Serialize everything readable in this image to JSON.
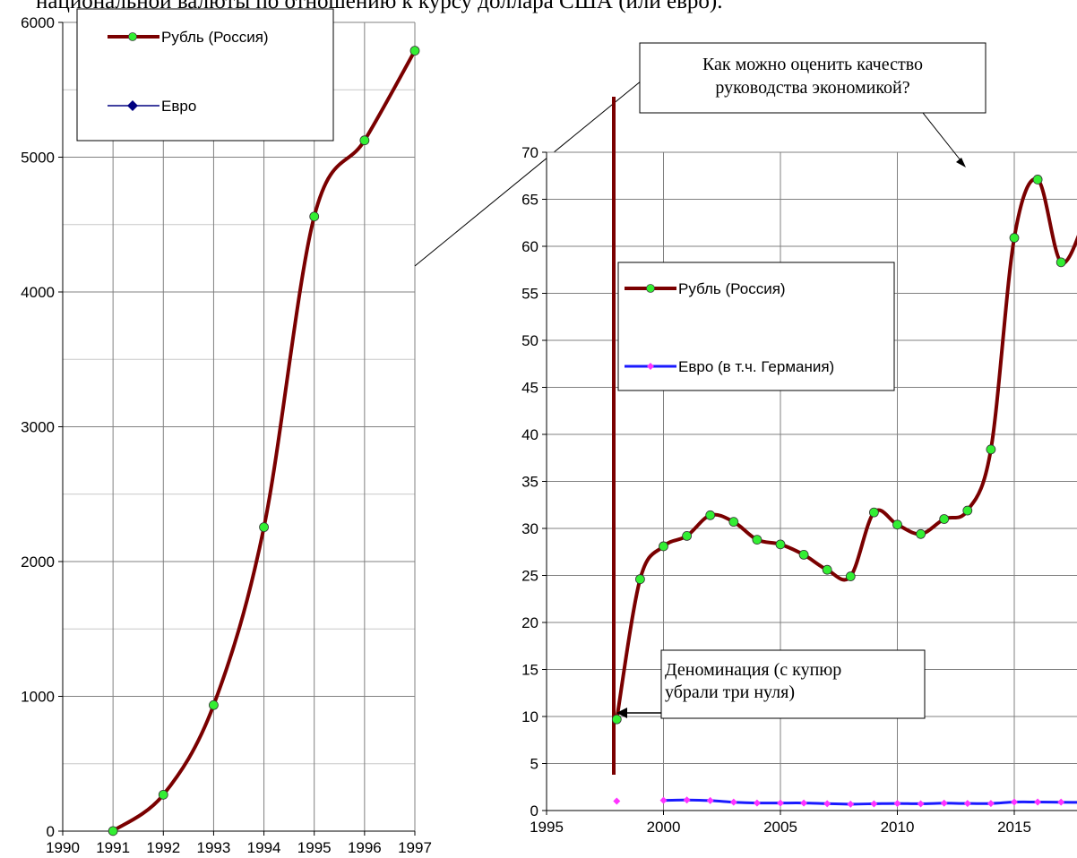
{
  "header_text": "национальной валюты по отношению к курсу доллара США (или евро).",
  "chart_data": [
    {
      "type": "line",
      "xlim": [
        1990,
        1997
      ],
      "ylim": [
        0,
        6000
      ],
      "x_ticks": [
        "1990",
        "1991",
        "1992",
        "1993",
        "1994",
        "1995",
        "1996",
        "1997"
      ],
      "y_ticks": [
        "0",
        "1000",
        "2000",
        "3000",
        "4000",
        "5000",
        "6000"
      ],
      "grid": true,
      "legend_position": "top-left",
      "legend": [
        "Рубль (Россия)",
        "Евро"
      ],
      "series": [
        {
          "name": "Рубль (Россия)",
          "color": "#7a0000",
          "marker_color": "#33ee33",
          "x": [
            1991,
            1992,
            1993,
            1994,
            1995,
            1996,
            1997
          ],
          "y": [
            1,
            270,
            935,
            2255,
            4560,
            5125,
            5790
          ]
        },
        {
          "name": "Евро",
          "color": "#000080",
          "marker_color": "#000080",
          "x": [],
          "y": []
        }
      ]
    },
    {
      "type": "line",
      "xlim": [
        1995,
        2018
      ],
      "ylim": [
        0,
        70
      ],
      "x_ticks": [
        "1995",
        "2000",
        "2005",
        "2010",
        "2015"
      ],
      "y_ticks": [
        "0",
        "5",
        "10",
        "15",
        "20",
        "25",
        "30",
        "35",
        "40",
        "45",
        "50",
        "55",
        "60",
        "65",
        "70"
      ],
      "grid": true,
      "legend_position": "left",
      "legend": [
        "Рубль (Россия)",
        "Евро (в т.ч. Германия)"
      ],
      "series": [
        {
          "name": "Рубль (Россия)",
          "color": "#7a0000",
          "marker_color": "#33ee33",
          "x": [
            1998,
            1999,
            2000,
            2001,
            2002,
            2003,
            2004,
            2005,
            2006,
            2007,
            2008,
            2009,
            2010,
            2011,
            2012,
            2013,
            2014,
            2015,
            2016,
            2017,
            2018
          ],
          "y": [
            9.7,
            24.6,
            28.1,
            29.2,
            31.4,
            30.7,
            28.8,
            28.3,
            27.2,
            25.6,
            24.9,
            31.7,
            30.4,
            29.4,
            31.0,
            31.9,
            38.4,
            60.9,
            67.1,
            58.3,
            62.7
          ]
        },
        {
          "name": "Евро (в т.ч. Германия)",
          "color": "#1a1aff",
          "marker_color": "#ff33ff",
          "x": [
            1998,
            2000,
            2001,
            2002,
            2003,
            2004,
            2005,
            2006,
            2007,
            2008,
            2009,
            2010,
            2011,
            2012,
            2013,
            2014,
            2015,
            2016,
            2017,
            2018
          ],
          "y": [
            1.0,
            1.08,
            1.12,
            1.06,
            0.89,
            0.8,
            0.8,
            0.8,
            0.73,
            0.68,
            0.72,
            0.75,
            0.72,
            0.78,
            0.75,
            0.75,
            0.9,
            0.9,
            0.89,
            0.85
          ]
        }
      ],
      "annotations": [
        "Как можно оценить качество руководства экономикой?",
        "Деноминация (с купюр убрали три нуля)"
      ]
    }
  ]
}
